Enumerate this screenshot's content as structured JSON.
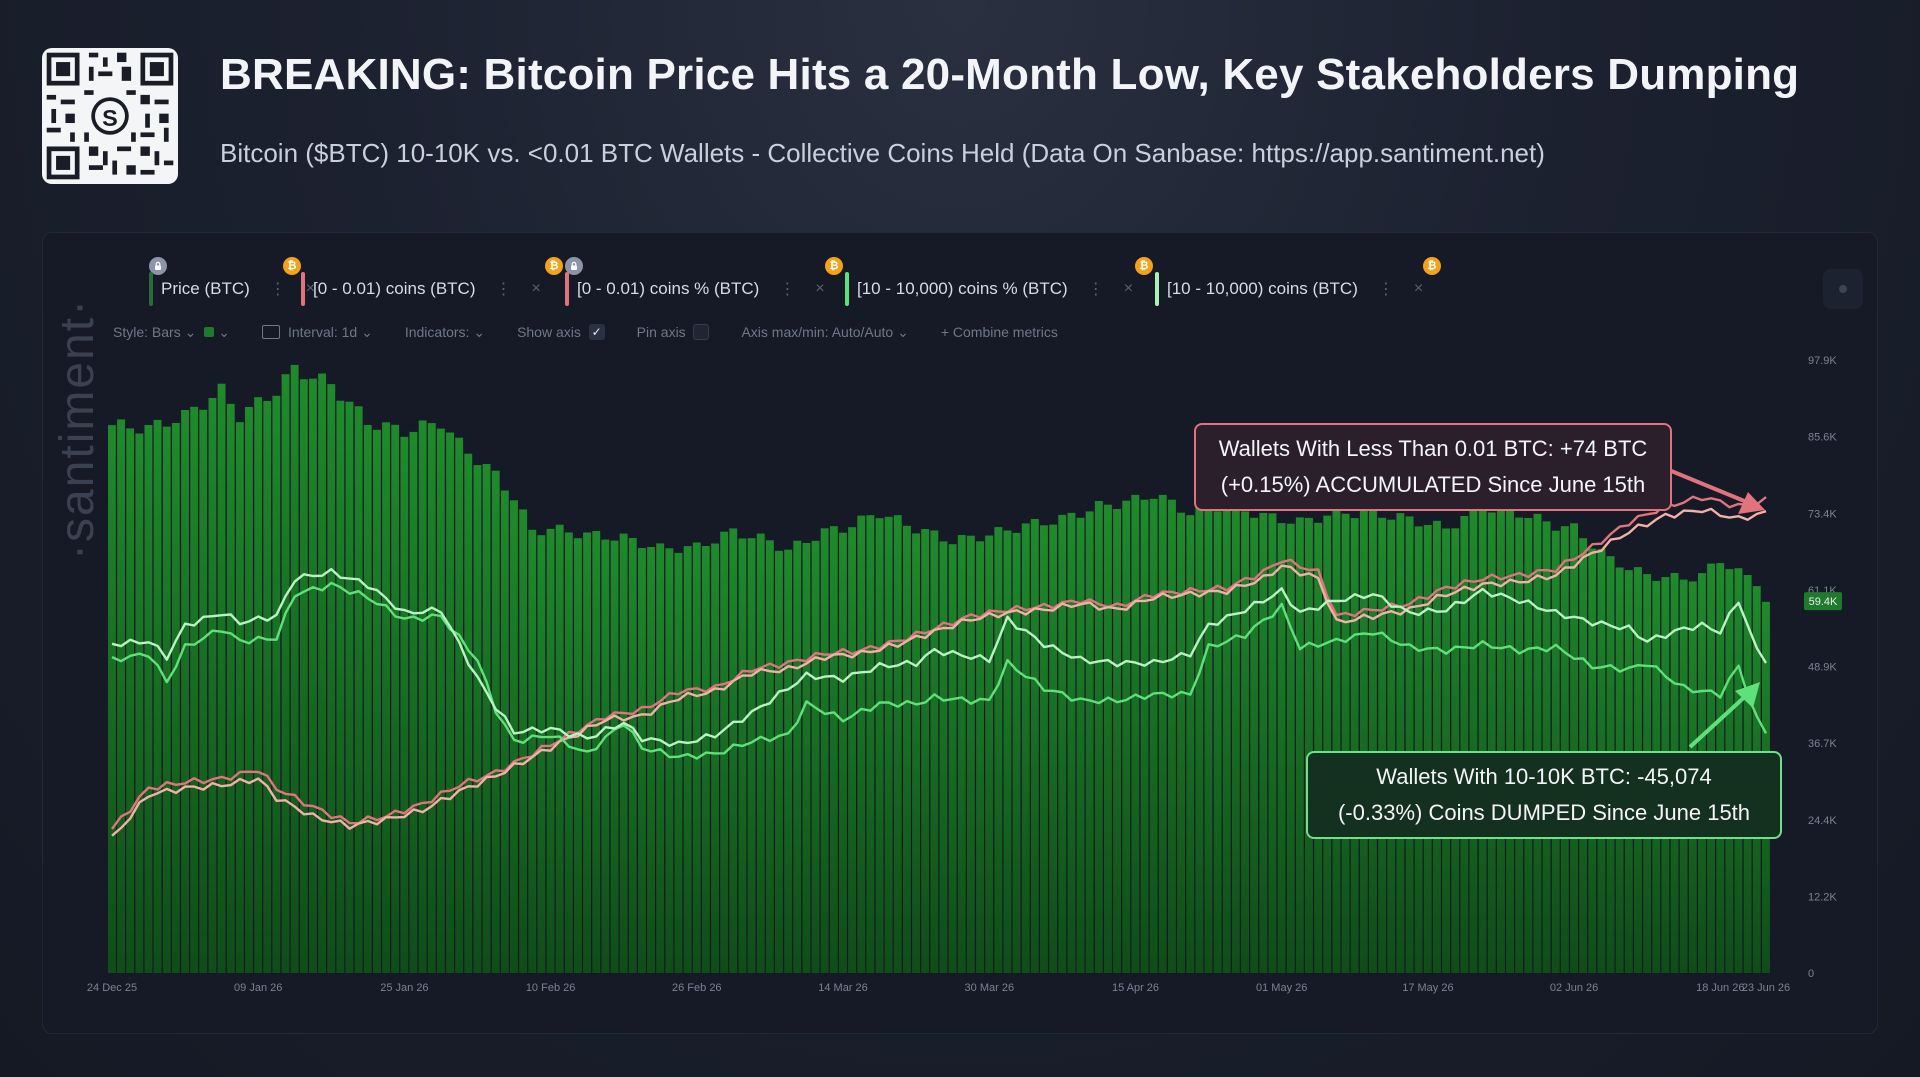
{
  "header": {
    "title": "BREAKING: Bitcoin Price Hits a 20-Month Low, Key Stakeholders Dumping",
    "subtitle": "Bitcoin ($BTC) 10-10K vs. <0.01 BTC Wallets - Collective Coins Held (Data On Sanbase: https://app.santiment.net)",
    "qr_center_mark": "S"
  },
  "metric_chips": [
    {
      "label": "Price (BTC)",
      "color": "#2a6b39",
      "icon": "lock-icon"
    },
    {
      "label": "[0 - 0.01) coins (BTC)",
      "color": "#e0737c",
      "icon": "bitcoin-icon"
    },
    {
      "label": "[0 - 0.01) coins % (BTC)",
      "color": "#e0737c",
      "icon": "lock-icon"
    },
    {
      "label": "[10 - 10,000) coins % (BTC)",
      "color": "#5fe07a",
      "icon": "bitcoin-icon"
    },
    {
      "label": "[10 - 10,000) coins (BTC)",
      "color": "#a8f0b4",
      "icon": "bitcoin-icon"
    }
  ],
  "toolbar": {
    "style": "Style: Bars",
    "interval": "Interval: 1d",
    "indicators": "Indicators:",
    "show_axis": "Show axis",
    "show_axis_checked": true,
    "pin_axis": "Pin axis",
    "pin_axis_checked": false,
    "axis_minmax": "Axis max/min: Auto/Auto",
    "combine": "+ Combine metrics"
  },
  "watermark": "·santiment·",
  "callouts": {
    "red": {
      "line1": "Wallets With Less Than 0.01 BTC: +74 BTC",
      "line2": "(+0.15%) ACCUMULATED Since June 15th"
    },
    "green": {
      "line1": "Wallets With 10-10K BTC: -45,074",
      "line2": "(-0.33%) Coins DUMPED Since June 15th"
    }
  },
  "colors": {
    "bars": "#14661f",
    "bars_top": "#1f8a2c",
    "small_wallets": "#e0737c",
    "small_wallets_light": "#f2b0a8",
    "large_wallets": "#5fe07a",
    "large_wallets_light": "#b8f3c2",
    "last_price_badge": "#1f7a2c"
  },
  "chart_data": {
    "type": "bar",
    "y_ticks": [
      "0",
      "12.2K",
      "24.4K",
      "36.7K",
      "48.9K",
      "61.1K",
      "73.4K",
      "85.6K",
      "97.9K"
    ],
    "ylim": [
      0,
      97900
    ],
    "last_price_label": "59.4K",
    "last_price": 59400,
    "x_ticks": [
      "24 Dec 25",
      "09 Jan 26",
      "25 Jan 26",
      "10 Feb 26",
      "26 Feb 26",
      "14 Mar 26",
      "30 Mar 26",
      "15 Apr 26",
      "01 May 26",
      "17 May 26",
      "02 Jun 26",
      "18 Jun 26",
      "23 Jun 26"
    ],
    "x_tick_days": [
      0,
      16,
      32,
      48,
      64,
      80,
      96,
      112,
      128,
      144,
      160,
      176,
      181
    ],
    "series": [
      {
        "name": "Price (BTC)",
        "kind": "bars",
        "key_points": [
          [
            0,
            87500
          ],
          [
            4,
            87000
          ],
          [
            8,
            89000
          ],
          [
            12,
            93000
          ],
          [
            14,
            89000
          ],
          [
            18,
            93000
          ],
          [
            20,
            96500
          ],
          [
            24,
            94000
          ],
          [
            28,
            88000
          ],
          [
            32,
            86500
          ],
          [
            36,
            88000
          ],
          [
            38,
            84500
          ],
          [
            42,
            79500
          ],
          [
            44,
            76000
          ],
          [
            46,
            70500
          ],
          [
            48,
            71000
          ],
          [
            52,
            70000
          ],
          [
            56,
            69500
          ],
          [
            60,
            67800
          ],
          [
            64,
            68000
          ],
          [
            68,
            70500
          ],
          [
            72,
            69000
          ],
          [
            74,
            67500
          ],
          [
            78,
            70500
          ],
          [
            80,
            71000
          ],
          [
            84,
            73500
          ],
          [
            88,
            71000
          ],
          [
            92,
            69000
          ],
          [
            96,
            70000
          ],
          [
            100,
            71500
          ],
          [
            104,
            72500
          ],
          [
            108,
            74500
          ],
          [
            112,
            75500
          ],
          [
            114,
            76500
          ],
          [
            118,
            73500
          ],
          [
            122,
            75000
          ],
          [
            126,
            73000
          ],
          [
            130,
            72000
          ],
          [
            134,
            73500
          ],
          [
            138,
            73500
          ],
          [
            142,
            72500
          ],
          [
            146,
            71000
          ],
          [
            150,
            74500
          ],
          [
            154,
            73500
          ],
          [
            158,
            71500
          ],
          [
            160,
            71000
          ],
          [
            164,
            66000
          ],
          [
            168,
            63500
          ],
          [
            172,
            63000
          ],
          [
            174,
            63500
          ],
          [
            176,
            66000
          ],
          [
            178,
            64000
          ],
          [
            180,
            62500
          ],
          [
            181,
            59400
          ]
        ]
      },
      {
        "name": "[0 - 0.01) coins (BTC)",
        "kind": "line",
        "key_points": [
          [
            0,
            23000
          ],
          [
            4,
            29500
          ],
          [
            8,
            30500
          ],
          [
            12,
            31000
          ],
          [
            16,
            32500
          ],
          [
            18,
            29500
          ],
          [
            22,
            26500
          ],
          [
            26,
            24000
          ],
          [
            30,
            25000
          ],
          [
            34,
            27000
          ],
          [
            38,
            30000
          ],
          [
            42,
            32000
          ],
          [
            46,
            35000
          ],
          [
            50,
            38000
          ],
          [
            54,
            41000
          ],
          [
            58,
            42000
          ],
          [
            62,
            45000
          ],
          [
            66,
            45500
          ],
          [
            70,
            48500
          ],
          [
            74,
            49500
          ],
          [
            78,
            51000
          ],
          [
            82,
            51500
          ],
          [
            86,
            53000
          ],
          [
            90,
            55000
          ],
          [
            94,
            57000
          ],
          [
            98,
            58000
          ],
          [
            102,
            58500
          ],
          [
            106,
            59500
          ],
          [
            110,
            58500
          ],
          [
            114,
            60500
          ],
          [
            118,
            61000
          ],
          [
            122,
            61500
          ],
          [
            126,
            64000
          ],
          [
            128,
            66000
          ],
          [
            132,
            64000
          ],
          [
            134,
            57000
          ],
          [
            138,
            58000
          ],
          [
            142,
            59000
          ],
          [
            146,
            61500
          ],
          [
            150,
            63000
          ],
          [
            154,
            63500
          ],
          [
            158,
            64500
          ],
          [
            162,
            68000
          ],
          [
            166,
            72000
          ],
          [
            170,
            74500
          ],
          [
            174,
            76000
          ],
          [
            178,
            74500
          ],
          [
            181,
            75500
          ]
        ]
      },
      {
        "name": "[0 - 0.01) coins % (BTC)",
        "kind": "line",
        "key_points": [
          [
            0,
            21500
          ],
          [
            4,
            28500
          ],
          [
            8,
            29500
          ],
          [
            12,
            30000
          ],
          [
            16,
            31000
          ],
          [
            18,
            28000
          ],
          [
            22,
            25000
          ],
          [
            26,
            23500
          ],
          [
            30,
            24500
          ],
          [
            34,
            26000
          ],
          [
            38,
            29000
          ],
          [
            42,
            31500
          ],
          [
            46,
            34500
          ],
          [
            50,
            37500
          ],
          [
            54,
            40500
          ],
          [
            58,
            41000
          ],
          [
            62,
            44000
          ],
          [
            66,
            45000
          ],
          [
            70,
            48000
          ],
          [
            74,
            48500
          ],
          [
            78,
            50500
          ],
          [
            82,
            51000
          ],
          [
            86,
            52500
          ],
          [
            90,
            54500
          ],
          [
            94,
            56500
          ],
          [
            98,
            57500
          ],
          [
            102,
            58000
          ],
          [
            106,
            59000
          ],
          [
            110,
            58000
          ],
          [
            114,
            60000
          ],
          [
            118,
            60500
          ],
          [
            122,
            61000
          ],
          [
            126,
            63000
          ],
          [
            128,
            65000
          ],
          [
            132,
            63000
          ],
          [
            134,
            56000
          ],
          [
            138,
            57000
          ],
          [
            142,
            58000
          ],
          [
            146,
            60500
          ],
          [
            150,
            62000
          ],
          [
            154,
            62500
          ],
          [
            158,
            63500
          ],
          [
            162,
            67000
          ],
          [
            166,
            70500
          ],
          [
            170,
            73000
          ],
          [
            174,
            74000
          ],
          [
            178,
            72500
          ],
          [
            181,
            73500
          ]
        ]
      },
      {
        "name": "[10 - 10,000) coins % (BTC)",
        "kind": "line",
        "key_points": [
          [
            0,
            50000
          ],
          [
            4,
            51000
          ],
          [
            6,
            46500
          ],
          [
            8,
            52000
          ],
          [
            12,
            55000
          ],
          [
            14,
            53000
          ],
          [
            18,
            53500
          ],
          [
            20,
            60500
          ],
          [
            24,
            62000
          ],
          [
            28,
            60000
          ],
          [
            32,
            56500
          ],
          [
            36,
            57000
          ],
          [
            40,
            50000
          ],
          [
            42,
            42000
          ],
          [
            44,
            37000
          ],
          [
            48,
            38000
          ],
          [
            52,
            35000
          ],
          [
            56,
            40000
          ],
          [
            58,
            36000
          ],
          [
            62,
            34500
          ],
          [
            66,
            35000
          ],
          [
            70,
            37000
          ],
          [
            74,
            38000
          ],
          [
            76,
            43000
          ],
          [
            80,
            40500
          ],
          [
            84,
            43000
          ],
          [
            88,
            43000
          ],
          [
            90,
            44000
          ],
          [
            94,
            43500
          ],
          [
            96,
            43500
          ],
          [
            98,
            49500
          ],
          [
            102,
            45500
          ],
          [
            106,
            43500
          ],
          [
            110,
            43500
          ],
          [
            114,
            44500
          ],
          [
            118,
            44500
          ],
          [
            120,
            52000
          ],
          [
            124,
            54000
          ],
          [
            128,
            58500
          ],
          [
            130,
            52000
          ],
          [
            134,
            53000
          ],
          [
            138,
            54500
          ],
          [
            142,
            52000
          ],
          [
            146,
            51500
          ],
          [
            150,
            52500
          ],
          [
            154,
            51500
          ],
          [
            158,
            52000
          ],
          [
            162,
            49000
          ],
          [
            166,
            48500
          ],
          [
            168,
            49500
          ],
          [
            172,
            45500
          ],
          [
            176,
            44500
          ],
          [
            178,
            49000
          ],
          [
            180,
            40500
          ],
          [
            181,
            38500
          ]
        ]
      },
      {
        "name": "[10 - 10,000) coins (BTC)",
        "kind": "line",
        "key_points": [
          [
            0,
            52500
          ],
          [
            4,
            53000
          ],
          [
            6,
            50500
          ],
          [
            8,
            55500
          ],
          [
            12,
            57500
          ],
          [
            14,
            56000
          ],
          [
            18,
            57000
          ],
          [
            20,
            63000
          ],
          [
            24,
            64000
          ],
          [
            28,
            62000
          ],
          [
            32,
            57500
          ],
          [
            36,
            58000
          ],
          [
            40,
            47000
          ],
          [
            42,
            42500
          ],
          [
            44,
            38500
          ],
          [
            48,
            39000
          ],
          [
            52,
            37500
          ],
          [
            56,
            40000
          ],
          [
            58,
            37500
          ],
          [
            62,
            36500
          ],
          [
            66,
            38000
          ],
          [
            70,
            41500
          ],
          [
            74,
            45500
          ],
          [
            76,
            47500
          ],
          [
            80,
            47000
          ],
          [
            84,
            49000
          ],
          [
            88,
            49500
          ],
          [
            90,
            51500
          ],
          [
            94,
            50500
          ],
          [
            96,
            50000
          ],
          [
            98,
            56500
          ],
          [
            102,
            52500
          ],
          [
            106,
            50000
          ],
          [
            110,
            49500
          ],
          [
            114,
            49500
          ],
          [
            118,
            51000
          ],
          [
            120,
            55500
          ],
          [
            124,
            58000
          ],
          [
            128,
            61000
          ],
          [
            130,
            57500
          ],
          [
            134,
            59500
          ],
          [
            138,
            60500
          ],
          [
            142,
            57500
          ],
          [
            146,
            58000
          ],
          [
            150,
            61000
          ],
          [
            154,
            59500
          ],
          [
            158,
            57500
          ],
          [
            162,
            56000
          ],
          [
            166,
            55000
          ],
          [
            168,
            53000
          ],
          [
            172,
            55000
          ],
          [
            174,
            55500
          ],
          [
            176,
            54500
          ],
          [
            178,
            59500
          ],
          [
            180,
            51500
          ],
          [
            181,
            50000
          ]
        ]
      }
    ]
  }
}
